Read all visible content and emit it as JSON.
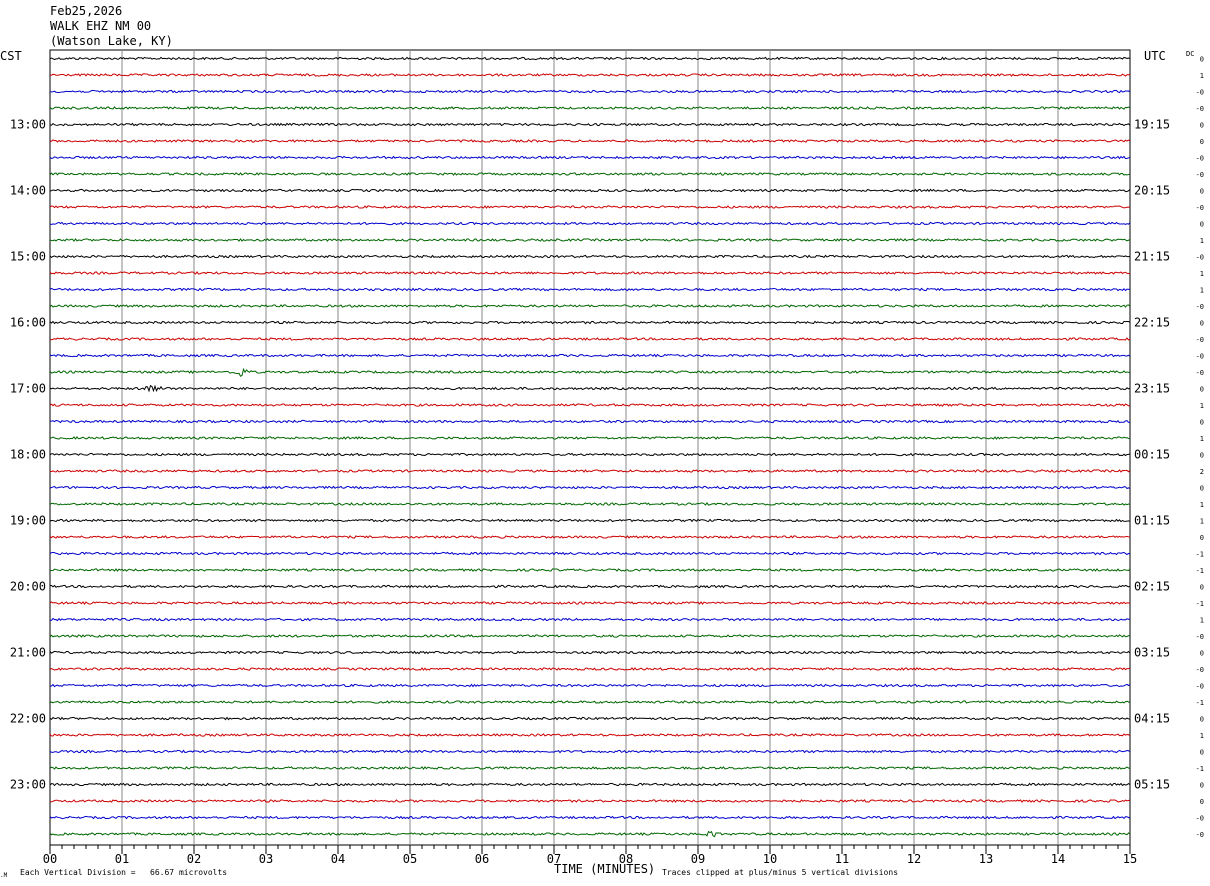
{
  "header": {
    "date": "Feb25,2026",
    "station": "WALK EHZ NM 00",
    "location": "(Watson Lake, KY)"
  },
  "labels": {
    "left_tz": "CST",
    "right_tz": "UTC",
    "dc": "DC",
    "xlabel": "TIME (MINUTES)",
    "scale_note": "Each Vertical Division =   66.67 microvolts",
    "clip_note": "Traces clipped at plus/minus 5 vertical divisions",
    "corner_mark": ".M"
  },
  "colors": {
    "cycle": [
      "#000000",
      "#cc0000",
      "#0000cc",
      "#006600"
    ],
    "grid": "#888888"
  },
  "chart_data": {
    "type": "line",
    "title": "",
    "xlabel": "TIME (MINUTES)",
    "xlim": [
      0,
      15
    ],
    "x_ticks": [
      "00",
      "01",
      "02",
      "03",
      "04",
      "05",
      "06",
      "07",
      "08",
      "09",
      "10",
      "11",
      "12",
      "13",
      "14",
      "15"
    ],
    "rows": 48,
    "minutes_per_row": 15,
    "left_time_labels": [
      {
        "row": 4,
        "label": "13:00"
      },
      {
        "row": 8,
        "label": "14:00"
      },
      {
        "row": 12,
        "label": "15:00"
      },
      {
        "row": 16,
        "label": "16:00"
      },
      {
        "row": 20,
        "label": "17:00"
      },
      {
        "row": 24,
        "label": "18:00"
      },
      {
        "row": 28,
        "label": "19:00"
      },
      {
        "row": 32,
        "label": "20:00"
      },
      {
        "row": 36,
        "label": "21:00"
      },
      {
        "row": 40,
        "label": "22:00"
      },
      {
        "row": 44,
        "label": "23:00"
      }
    ],
    "right_time_labels": [
      {
        "row": 4,
        "label": "19:15"
      },
      {
        "row": 8,
        "label": "20:15"
      },
      {
        "row": 12,
        "label": "21:15"
      },
      {
        "row": 16,
        "label": "22:15"
      },
      {
        "row": 20,
        "label": "23:15"
      },
      {
        "row": 24,
        "label": "00:15"
      },
      {
        "row": 28,
        "label": "01:15"
      },
      {
        "row": 32,
        "label": "02:15"
      },
      {
        "row": 36,
        "label": "03:15"
      },
      {
        "row": 40,
        "label": "04:15"
      },
      {
        "row": 44,
        "label": "05:15"
      }
    ],
    "dc_offsets": [
      "0",
      "1",
      "-0",
      "-0",
      "0",
      "0",
      "-0",
      "-0",
      "0",
      "-0",
      "0",
      "1",
      "-0",
      "1",
      "1",
      "-0",
      "0",
      "-0",
      "-0",
      "-0",
      "0",
      "1",
      "0",
      "1",
      "0",
      "2",
      "0",
      "1",
      "1",
      "0",
      "-1",
      "-1",
      "0",
      "-1",
      "1",
      "-0",
      "0",
      "-0",
      "-0",
      "-1",
      "0",
      "1",
      "0",
      "-1",
      "0",
      "0",
      "-0",
      "-0"
    ],
    "events": [
      {
        "row": 20,
        "minute": 1.45,
        "amplitude": 1.0
      },
      {
        "row": 19,
        "minute": 2.65,
        "amplitude": 1.0
      },
      {
        "row": 47,
        "minute": 9.2,
        "amplitude": 0.6
      }
    ]
  }
}
